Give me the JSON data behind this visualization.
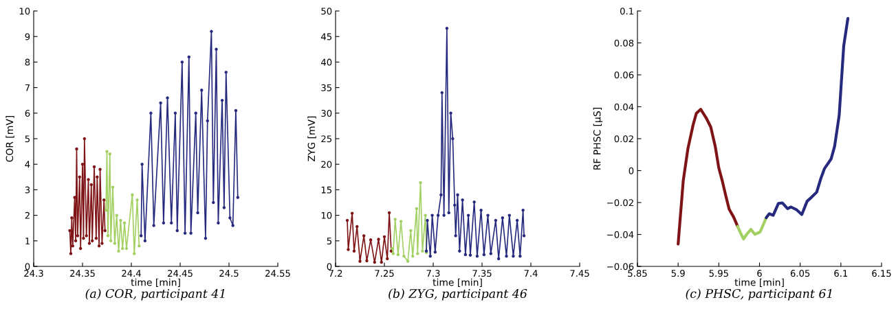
{
  "chart_data": [
    {
      "type": "line",
      "marker": "circle",
      "xlabel": "time [min]",
      "ylabel": "COR [mV]",
      "annotations": [
        "(a) COR, participant 41"
      ],
      "xlim": [
        24.3,
        24.55
      ],
      "xticks": [
        24.3,
        24.35,
        24.4,
        24.45,
        24.5,
        24.55
      ],
      "ylim": [
        0,
        10
      ],
      "yticks": [
        0,
        1,
        2,
        3,
        4,
        5,
        6,
        7,
        8,
        9,
        10
      ],
      "series": [
        {
          "color": "#7f1416",
          "x": [
            24.337,
            24.338,
            24.339,
            24.34,
            24.342,
            24.343,
            24.344,
            24.345,
            24.347,
            24.348,
            24.35,
            24.351,
            24.352,
            24.354,
            24.356,
            24.357,
            24.359,
            24.36,
            24.362,
            24.364,
            24.365,
            24.367,
            24.368,
            24.37,
            24.372,
            24.373
          ],
          "values": [
            1.4,
            0.5,
            1.9,
            0.8,
            2.7,
            1.0,
            4.6,
            1.2,
            3.5,
            0.7,
            4.0,
            1.1,
            5.0,
            1.2,
            3.4,
            0.9,
            3.2,
            1.0,
            3.9,
            1.1,
            3.5,
            0.8,
            3.8,
            0.9,
            2.6,
            1.4
          ]
        },
        {
          "color": "#a3d063",
          "x": [
            24.374,
            24.375,
            24.376,
            24.378,
            24.379,
            24.381,
            24.383,
            24.385,
            24.387,
            24.389,
            24.391,
            24.393,
            24.395,
            24.401,
            24.403,
            24.406,
            24.408
          ],
          "values": [
            2.2,
            4.5,
            1.2,
            4.4,
            1.0,
            3.1,
            0.9,
            2.0,
            0.6,
            1.8,
            0.7,
            1.7,
            0.7,
            2.8,
            0.5,
            2.6,
            0.8
          ]
        },
        {
          "color": "#262a7e",
          "x": [
            24.41,
            24.411,
            24.414,
            24.42,
            24.423,
            24.43,
            24.433,
            24.437,
            24.441,
            24.445,
            24.447,
            24.452,
            24.455,
            24.459,
            24.461,
            24.466,
            24.468,
            24.472,
            24.476,
            24.478,
            24.482,
            24.484,
            24.487,
            24.489,
            24.493,
            24.495,
            24.497,
            24.501,
            24.504,
            24.507,
            24.509
          ],
          "values": [
            1.2,
            4.0,
            1.0,
            6.0,
            1.6,
            6.4,
            1.7,
            6.6,
            1.7,
            6.0,
            1.4,
            8.0,
            1.3,
            8.2,
            1.3,
            6.0,
            2.1,
            6.9,
            1.1,
            5.7,
            9.2,
            2.5,
            8.5,
            1.7,
            6.5,
            2.3,
            7.6,
            1.9,
            1.6,
            6.1,
            2.7
          ]
        }
      ]
    },
    {
      "type": "line",
      "marker": "circle",
      "xlabel": "time [min]",
      "ylabel": "ZYG [mV]",
      "annotations": [
        "(b) ZYG, participant 46"
      ],
      "xlim": [
        7.2,
        7.45
      ],
      "xticks": [
        7.2,
        7.25,
        7.3,
        7.35,
        7.4,
        7.45
      ],
      "ylim": [
        0,
        50
      ],
      "yticks": [
        0,
        5,
        10,
        15,
        20,
        25,
        30,
        35,
        40,
        45,
        50
      ],
      "series": [
        {
          "color": "#7f1416",
          "x": [
            7.212,
            7.213,
            7.217,
            7.219,
            7.222,
            7.225,
            7.229,
            7.232,
            7.236,
            7.24,
            7.244,
            7.247,
            7.25,
            7.253,
            7.255,
            7.257
          ],
          "values": [
            9.0,
            3.3,
            10.4,
            3.0,
            7.8,
            1.0,
            6.0,
            1.1,
            5.2,
            0.8,
            5.3,
            0.8,
            5.8,
            1.5,
            10.5,
            3.0
          ]
        },
        {
          "color": "#a3d063",
          "x": [
            7.258,
            7.259,
            7.261,
            7.264,
            7.267,
            7.27,
            7.274,
            7.277,
            7.279,
            7.283,
            7.284,
            7.287,
            7.289,
            7.292,
            7.293
          ],
          "values": [
            3.5,
            2.5,
            9.2,
            2.3,
            8.8,
            2.0,
            1.0,
            7.0,
            2.0,
            11.3,
            2.5,
            16.4,
            3.0,
            10.0,
            2.7
          ]
        },
        {
          "color": "#262a7e",
          "x": [
            7.293,
            7.294,
            7.297,
            7.299,
            7.302,
            7.305,
            7.308,
            7.309,
            7.311,
            7.314,
            7.316,
            7.318,
            7.32,
            7.322,
            7.323,
            7.325,
            7.327,
            7.33,
            7.333,
            7.336,
            7.338,
            7.342,
            7.345,
            7.349,
            7.352,
            7.356,
            7.359,
            7.364,
            7.367,
            7.371,
            7.375,
            7.378,
            7.382,
            7.386,
            7.389,
            7.392,
            7.393
          ],
          "values": [
            3.0,
            9.0,
            2.0,
            10.0,
            2.8,
            10.0,
            14,
            34,
            10,
            46.6,
            10.5,
            30,
            25,
            12,
            6,
            14,
            3,
            13,
            2.3,
            10,
            2.2,
            12.6,
            2.0,
            11.0,
            2.3,
            10,
            2.5,
            9.0,
            1.5,
            9.5,
            2.0,
            10.0,
            2.0,
            9.0,
            2.0,
            11.0,
            6.0
          ]
        }
      ]
    },
    {
      "type": "line",
      "marker": "none",
      "xlabel": "time [min]",
      "ylabel": "RF PHSC [µS]",
      "annotations": [
        "(c) PHSC, participant 61"
      ],
      "xlim": [
        5.85,
        6.15
      ],
      "xticks": [
        5.85,
        5.9,
        5.95,
        6,
        6.05,
        6.1,
        6.15
      ],
      "ylim": [
        -0.06,
        0.1
      ],
      "yticks": [
        {
          "value": -0.06,
          "label": "−0.06"
        },
        {
          "value": -0.04,
          "label": "−0.04"
        },
        {
          "value": -0.02,
          "label": "−0.02"
        },
        0,
        0.02,
        0.04,
        0.06,
        0.08,
        0.1
      ],
      "series": [
        {
          "color": "#7f1416",
          "x": [
            5.9,
            5.9063,
            5.912,
            5.9185,
            5.9224,
            5.9277,
            5.9345,
            5.9401,
            5.9456,
            5.95,
            5.9542,
            5.9585,
            5.9627,
            5.9683,
            5.9731
          ],
          "values": [
            -0.046,
            -0.0063,
            0.0137,
            0.0288,
            0.0359,
            0.0384,
            0.033,
            0.0273,
            0.0152,
            0.0016,
            -0.0063,
            -0.0156,
            -0.0242,
            -0.0292,
            -0.0349
          ]
        },
        {
          "color": "#a3d063",
          "x": [
            5.9731,
            5.9768,
            5.9804,
            5.9843,
            5.9894,
            5.9942,
            6.0007,
            6.0044,
            6.0083
          ],
          "values": [
            -0.0349,
            -0.0392,
            -0.0428,
            -0.0399,
            -0.0368,
            -0.0399,
            -0.0385,
            -0.0342,
            -0.0295
          ]
        },
        {
          "color": "#262a7e",
          "x": [
            6.0083,
            6.012,
            6.0168,
            6.0232,
            6.028,
            6.0345,
            6.0387,
            6.0458,
            6.052,
            6.0585,
            6.0641,
            6.0703,
            6.0754,
            6.0797,
            6.088,
            6.0923,
            6.0979,
            6.1035,
            6.1086
          ],
          "values": [
            -0.0295,
            -0.027,
            -0.028,
            -0.0206,
            -0.0202,
            -0.0238,
            -0.0228,
            -0.0246,
            -0.0275,
            -0.0192,
            -0.0166,
            -0.0135,
            -0.0049,
            0.0011,
            0.0073,
            0.0152,
            0.0345,
            0.0781,
            0.0953
          ]
        }
      ]
    }
  ]
}
